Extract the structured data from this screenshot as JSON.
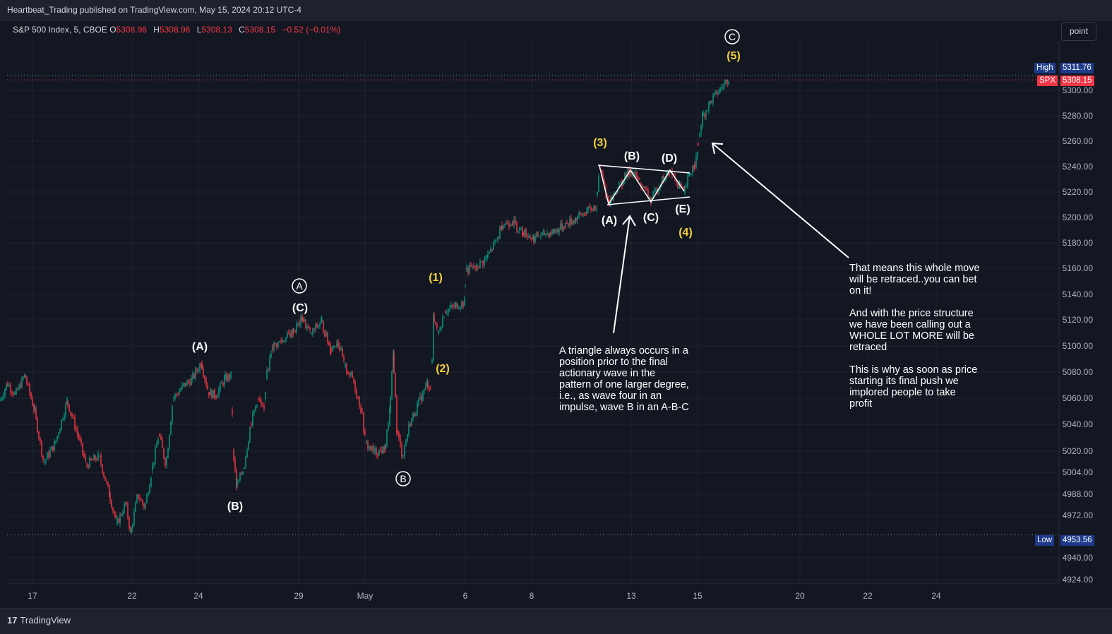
{
  "publish_header": "Heartbeat_Trading published on TradingView.com, May 15, 2024 20:12 UTC-4",
  "legend": {
    "symbol": "S&P 500 Index, 5, CBOE",
    "open_label": "O",
    "open": "5308.96",
    "high_label": "H",
    "high": "5308.96",
    "low_label": "L",
    "low": "5308.13",
    "close_label": "C",
    "close": "5308.15",
    "change": "−0.52 (−0.01%)"
  },
  "scale_button": "point",
  "price_tags": {
    "high_label": "High",
    "high_value": "5311.76",
    "spx_label": "SPX",
    "spx_value": "5308.15",
    "low_label": "Low",
    "low_value": "4953.56"
  },
  "footer_logo": "TradingView",
  "colors": {
    "background": "#131722",
    "up_candle": "#089981",
    "down_candle": "#f23645",
    "wave_yellow": "#f5d13d",
    "text_white": "#ffffff",
    "high_tag": "#1e3a8a",
    "low_tag": "#1e3a8a",
    "spx_tag": "#f23645"
  },
  "wave_labels": [
    {
      "text": "A",
      "circled": true,
      "color": "white"
    },
    {
      "text": "(C)",
      "circled": false,
      "color": "white"
    },
    {
      "text": "(A)",
      "circled": false,
      "color": "white"
    },
    {
      "text": "(B)",
      "circled": false,
      "color": "white"
    },
    {
      "text": "B",
      "circled": true,
      "color": "white"
    },
    {
      "text": "(1)",
      "circled": false,
      "color": "yellow"
    },
    {
      "text": "(2)",
      "circled": false,
      "color": "yellow"
    },
    {
      "text": "(3)",
      "circled": false,
      "color": "yellow"
    },
    {
      "text": "(4)",
      "circled": false,
      "color": "yellow"
    },
    {
      "text": "(5)",
      "circled": false,
      "color": "yellow"
    },
    {
      "text": "C",
      "circled": true,
      "color": "white"
    },
    {
      "text": "(A)",
      "circled": false,
      "color": "white"
    },
    {
      "text": "(B)",
      "circled": false,
      "color": "white"
    },
    {
      "text": "(C)",
      "circled": false,
      "color": "white"
    },
    {
      "text": "(D)",
      "circled": false,
      "color": "white"
    },
    {
      "text": "(E)",
      "circled": false,
      "color": "white"
    }
  ],
  "annotations": {
    "triangle_note": [
      "A triangle always occurs in a",
      "position prior to the final",
      "actionary wave in the",
      "pattern of one larger degree,",
      "i.e., as wave four in an",
      "impulse, wave B in an A-B-C"
    ],
    "retrace_note": [
      "That means this whole move",
      "will be retraced..you can bet",
      "on it!",
      "",
      "And with the price structure",
      "we have been calling out a",
      "WHOLE LOT MORE will be",
      "retraced",
      "",
      "This is why as soon as price",
      "starting its final push we",
      "implored people to take",
      "profit"
    ]
  },
  "chart_data": {
    "type": "candlestick",
    "title": "S&P 500 Index, 5, CBOE",
    "ylabel": "",
    "xlabel": "",
    "ylim": [
      4916,
      5336
    ],
    "y_ticks": [
      "5300.00",
      "5280.00",
      "5260.00",
      "5240.00",
      "5220.00",
      "5200.00",
      "5180.00",
      "5160.00",
      "5140.00",
      "5120.00",
      "5100.00",
      "5080.00",
      "5060.00",
      "5040.00",
      "5020.00",
      "5004.00",
      "4988.00",
      "4972.00",
      "4940.00",
      "4924.00"
    ],
    "x_ticks": [
      "17",
      "22",
      "24",
      "29",
      "May",
      "6",
      "8",
      "13",
      "15",
      "20",
      "22",
      "24"
    ],
    "high": 5311.76,
    "low": 4953.56,
    "last": 5308.15,
    "price_path": [
      [
        0,
        5058
      ],
      [
        10,
        5072
      ],
      [
        22,
        5063
      ],
      [
        35,
        5078
      ],
      [
        48,
        5052
      ],
      [
        62,
        5010
      ],
      [
        78,
        5025
      ],
      [
        95,
        5058
      ],
      [
        110,
        5032
      ],
      [
        122,
        5008
      ],
      [
        140,
        5015
      ],
      [
        155,
        4985
      ],
      [
        165,
        4962
      ],
      [
        178,
        4978
      ],
      [
        185,
        4955
      ],
      [
        195,
        4985
      ],
      [
        205,
        4975
      ],
      [
        215,
        5004
      ],
      [
        225,
        5032
      ],
      [
        235,
        5008
      ],
      [
        245,
        5060
      ],
      [
        260,
        5070
      ],
      [
        272,
        5075
      ],
      [
        285,
        5088
      ],
      [
        295,
        5065
      ],
      [
        305,
        5062
      ],
      [
        318,
        5075
      ],
      [
        328,
        5078
      ],
      [
        330,
        5020
      ],
      [
        335,
        4992
      ],
      [
        345,
        5005
      ],
      [
        355,
        5040
      ],
      [
        365,
        5060
      ],
      [
        375,
        5048
      ],
      [
        377,
        5075
      ],
      [
        385,
        5100
      ],
      [
        400,
        5105
      ],
      [
        415,
        5112
      ],
      [
        428,
        5122
      ],
      [
        440,
        5110
      ],
      [
        455,
        5120
      ],
      [
        468,
        5098
      ],
      [
        478,
        5105
      ],
      [
        488,
        5085
      ],
      [
        500,
        5075
      ],
      [
        512,
        5050
      ],
      [
        518,
        5025
      ],
      [
        530,
        5018
      ],
      [
        545,
        5020
      ],
      [
        552,
        5050
      ],
      [
        557,
        5095
      ],
      [
        562,
        5035
      ],
      [
        570,
        5015
      ],
      [
        580,
        5040
      ],
      [
        592,
        5055
      ],
      [
        605,
        5072
      ],
      [
        611,
        5068
      ],
      [
        614,
        5125
      ],
      [
        620,
        5110
      ],
      [
        630,
        5128
      ],
      [
        645,
        5132
      ],
      [
        658,
        5135
      ],
      [
        660,
        5160
      ],
      [
        675,
        5162
      ],
      [
        690,
        5170
      ],
      [
        705,
        5185
      ],
      [
        710,
        5195
      ],
      [
        725,
        5198
      ],
      [
        740,
        5190
      ],
      [
        755,
        5185
      ],
      [
        770,
        5188
      ],
      [
        785,
        5190
      ],
      [
        800,
        5195
      ],
      [
        815,
        5200
      ],
      [
        830,
        5205
      ],
      [
        845,
        5210
      ],
      [
        849,
        5240
      ],
      [
        862,
        5212
      ],
      [
        876,
        5225
      ],
      [
        893,
        5238
      ],
      [
        907,
        5228
      ],
      [
        922,
        5214
      ],
      [
        937,
        5230
      ],
      [
        949,
        5236
      ],
      [
        962,
        5226
      ],
      [
        969,
        5220
      ],
      [
        976,
        5234
      ],
      [
        983,
        5242
      ],
      [
        988,
        5250
      ],
      [
        990,
        5265
      ],
      [
        995,
        5280
      ],
      [
        1005,
        5290
      ],
      [
        1015,
        5298
      ],
      [
        1025,
        5304
      ],
      [
        1033,
        5311
      ]
    ]
  }
}
